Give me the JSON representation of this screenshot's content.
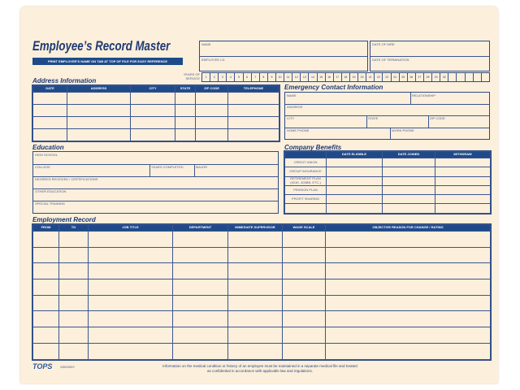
{
  "header": {
    "title": "Employee’s Record Master",
    "banner": "PRINT EMPLOYEE’S NAME ON TAB AT TOP OF FILE FOR EASY REFERENCE",
    "name": "NAME",
    "employee_id": "EMPLOYEE I.D.",
    "date_of_hire": "DATE OF HIRE",
    "date_of_termination": "DATE OF TERMINATION",
    "years_label": "YEARS OF SERVICE",
    "years": [
      "1",
      "2",
      "3",
      "4",
      "5",
      "6",
      "7",
      "8",
      "9",
      "10",
      "11",
      "12",
      "13",
      "14",
      "15",
      "16",
      "17",
      "18",
      "19",
      "20",
      "21",
      "22",
      "23",
      "24",
      "25",
      "26",
      "27",
      "28",
      "29",
      "30",
      "",
      "",
      "",
      "",
      ""
    ]
  },
  "address": {
    "title": "Address Information",
    "columns": [
      "DATE",
      "ADDRESS",
      "CITY",
      "STATE",
      "ZIP CODE",
      "TELEPHONE"
    ]
  },
  "emergency": {
    "title": "Emergency Contact Information",
    "name": "NAME",
    "relationship": "RELATIONSHIP",
    "address": "ADDRESS",
    "city": "CITY",
    "state": "STATE",
    "zip": "ZIP CODE",
    "home_phone": "HOME PHONE",
    "work_phone": "WORK PHONE"
  },
  "education": {
    "title": "Education",
    "high_school": "HIGH SCHOOL",
    "college": "COLLEGE",
    "years_completed": "YEARS COMPLETED",
    "major": "MAJOR",
    "degrees": "DEGREES RECEIVED / CERTIFICATIONS",
    "other": "OTHER EDUCATION",
    "special": "SPECIAL TRAINING"
  },
  "benefits": {
    "title": "Company Benefits",
    "columns": [
      "",
      "DATE ELIGIBLE",
      "DATE JOINED",
      "WITHDRAW"
    ],
    "rows": [
      "CREDIT UNION",
      "GROUP INSURANCE",
      "RETIREMENT PLAN (401K, 403BB, ETC.)",
      "PENSION PLAN",
      "PROFIT SHARING",
      ""
    ]
  },
  "employment": {
    "title": "Employment Record",
    "columns": [
      "FROM",
      "TO",
      "JOB TITLE",
      "DEPARTMENT",
      "IMMEDIATE SUPERVISOR",
      "WAGE SCALE",
      "OBJECTIVE REASON FOR CHANGE / RATING"
    ]
  },
  "footer": {
    "logo": "TOPS",
    "code": "32803280Y",
    "notice": "Information on the medical condition or history of an employee must be maintained in a separate medical file and treated as confidential in accordance with applicable law and regulations."
  }
}
